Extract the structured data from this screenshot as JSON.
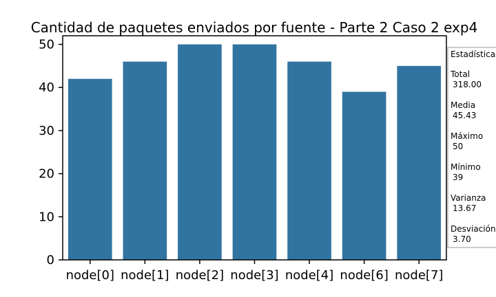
{
  "chart_data": {
    "type": "bar",
    "title": "Cantidad de paquetes enviados por fuente - Parte 2 Caso 2 exp4",
    "xlabel": "",
    "ylabel": "",
    "categories": [
      "node[0]",
      "node[1]",
      "node[2]",
      "node[3]",
      "node[4]",
      "node[6]",
      "node[7]"
    ],
    "values": [
      42,
      46,
      50,
      50,
      46,
      39,
      45
    ],
    "ylim": [
      0,
      52
    ],
    "yticks": [
      "0",
      "10",
      "20",
      "30",
      "40",
      "50"
    ],
    "bar_color": "#3274a1",
    "grid": false,
    "legend": "none"
  },
  "stats_box": {
    "title": "Estadísticas",
    "lines": [
      {
        "label": "Total",
        "value": "318.00"
      },
      {
        "label": "Media",
        "value": "45.43"
      },
      {
        "label": "Máximo",
        "value": "50"
      },
      {
        "label": "Mínimo",
        "value": "39"
      },
      {
        "label": "Varianza",
        "value": "13.67"
      },
      {
        "label": "Desviación",
        "value": "3.70"
      }
    ]
  }
}
